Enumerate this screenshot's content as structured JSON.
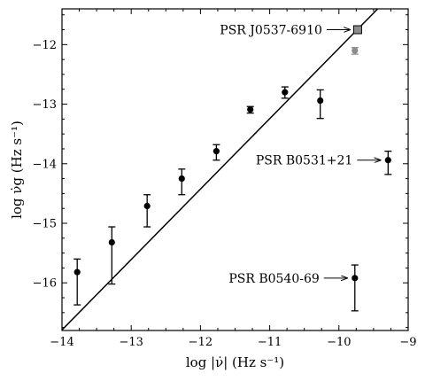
{
  "chart_data": {
    "type": "scatter",
    "xlabel": "log |ν̇| (Hz s⁻¹)",
    "ylabel": "log ν̇g (Hz s⁻¹)",
    "xlim": [
      -14,
      -9
    ],
    "ylim": [
      -16.8,
      -11.4
    ],
    "x_ticks": [
      -14,
      -13,
      -12,
      -11,
      -10,
      -9
    ],
    "x_tick_labels": [
      "−14",
      "−13",
      "−12",
      "−11",
      "−10",
      "−9"
    ],
    "y_ticks": [
      -16,
      -15,
      -14,
      -13,
      -12
    ],
    "y_tick_labels": [
      "−16",
      "−15",
      "−14",
      "−13",
      "−12"
    ],
    "grid": false,
    "fit_line": {
      "x": [
        -14,
        -9.44
      ],
      "y": [
        -16.79,
        -11.4
      ]
    },
    "series": [
      {
        "marker": "circle",
        "color": "#000000",
        "points": [
          {
            "x": -13.78,
            "y": -15.82,
            "err_low": 0.55,
            "err_high": 0.22
          },
          {
            "x": -13.28,
            "y": -15.32,
            "err_low": 0.7,
            "err_high": 0.26
          },
          {
            "x": -12.77,
            "y": -14.71,
            "err_low": 0.35,
            "err_high": 0.19
          },
          {
            "x": -12.27,
            "y": -14.25,
            "err_low": 0.27,
            "err_high": 0.16
          },
          {
            "x": -11.77,
            "y": -13.79,
            "err_low": 0.15,
            "err_high": 0.11
          },
          {
            "x": -11.28,
            "y": -13.09,
            "err_low": 0.06,
            "err_high": 0.05
          },
          {
            "x": -10.78,
            "y": -12.8,
            "err_low": 0.1,
            "err_high": 0.09
          },
          {
            "x": -10.27,
            "y": -12.94,
            "err_low": 0.3,
            "err_high": 0.18
          },
          {
            "x": -9.29,
            "y": -13.94,
            "err_low": 0.24,
            "err_high": 0.15
          },
          {
            "x": -9.77,
            "y": -15.92,
            "err_low": 0.55,
            "err_high": 0.22
          }
        ]
      },
      {
        "marker": "circle",
        "color": "#8c8c8c",
        "points": [
          {
            "x": -9.77,
            "y": -12.1,
            "err_low": 0.06,
            "err_high": 0.05
          }
        ]
      },
      {
        "marker": "square",
        "color": "#8c8c8c",
        "points": [
          {
            "x": -9.73,
            "y": -11.75,
            "err_low": 0,
            "err_high": 0
          }
        ]
      }
    ],
    "annotations": [
      {
        "text": "PSR J0537-6910",
        "x": -9.73,
        "y": -11.75,
        "align": "left"
      },
      {
        "text": "PSR B0531+21",
        "x": -9.29,
        "y": -13.94,
        "align": "left"
      },
      {
        "text": "PSR B0540-69",
        "x": -9.77,
        "y": -15.92,
        "align": "left"
      }
    ]
  }
}
